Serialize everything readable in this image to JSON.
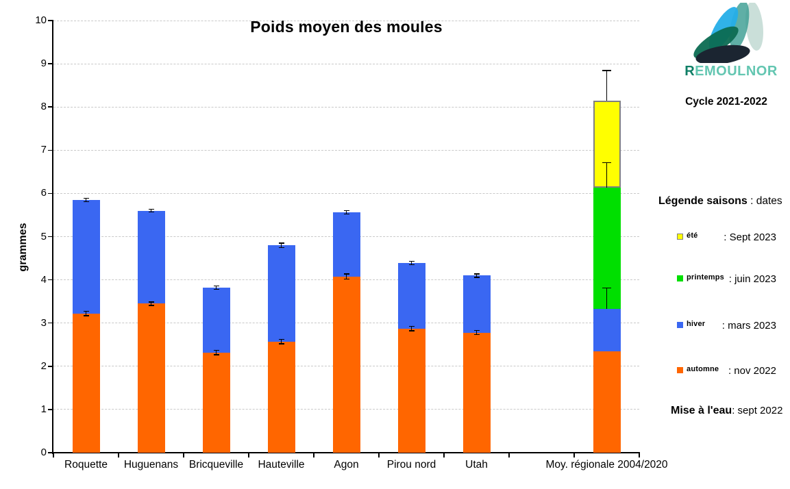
{
  "chart_data": {
    "type": "bar",
    "stacked": true,
    "title": "Poids moyen des moules",
    "ylabel": "grammes",
    "ylim": [
      0,
      10
    ],
    "ytick_step": 1,
    "grid": "horizontal dashed gridlines at every integer",
    "legend_position": "right panel (custom)",
    "categories": [
      "Roquette",
      "Huguenans",
      "Bricqueville",
      "Hauteville",
      "Agon",
      "Pirou nord",
      "Utah",
      "",
      "Moy. régionale 2004/2020"
    ],
    "series": [
      {
        "name": "automne",
        "color": "#FF6600",
        "values": [
          3.22,
          3.45,
          2.32,
          2.57,
          4.08,
          2.87,
          2.78,
          null,
          2.35
        ]
      },
      {
        "name": "hiver",
        "color": "#3A67F2",
        "values": [
          2.63,
          2.15,
          1.5,
          2.23,
          1.48,
          1.52,
          1.32,
          null,
          0.98
        ]
      },
      {
        "name": "printemps",
        "color": "#00DF00",
        "values": [
          0,
          0,
          0,
          0,
          0,
          0,
          0,
          null,
          2.81
        ]
      },
      {
        "name": "été",
        "color": "#FFFF00",
        "border": "#808080",
        "values": [
          0,
          0,
          0,
          0,
          0,
          0,
          0,
          null,
          2.01
        ]
      }
    ],
    "stack_totals": [
      5.85,
      5.6,
      3.82,
      4.8,
      5.56,
      4.39,
      4.1,
      null,
      8.15
    ],
    "error_bars": [
      {
        "ci": 0,
        "whiskers": [
          {
            "at": 3.22,
            "plus": 0.05,
            "minus": 0.05
          },
          {
            "at": 5.85,
            "plus": 0.04,
            "minus": 0.04
          }
        ]
      },
      {
        "ci": 1,
        "whiskers": [
          {
            "at": 3.45,
            "plus": 0.04,
            "minus": 0.04
          },
          {
            "at": 5.6,
            "plus": 0.03,
            "minus": 0.03
          }
        ]
      },
      {
        "ci": 2,
        "whiskers": [
          {
            "at": 2.32,
            "plus": 0.05,
            "minus": 0.05
          },
          {
            "at": 3.82,
            "plus": 0.04,
            "minus": 0.04
          }
        ]
      },
      {
        "ci": 3,
        "whiskers": [
          {
            "at": 2.57,
            "plus": 0.05,
            "minus": 0.05
          },
          {
            "at": 4.8,
            "plus": 0.05,
            "minus": 0.05
          }
        ]
      },
      {
        "ci": 4,
        "whiskers": [
          {
            "at": 4.08,
            "plus": 0.06,
            "minus": 0.06
          },
          {
            "at": 5.56,
            "plus": 0.04,
            "minus": 0.04
          }
        ]
      },
      {
        "ci": 5,
        "whiskers": [
          {
            "at": 2.87,
            "plus": 0.05,
            "minus": 0.05
          },
          {
            "at": 4.39,
            "plus": 0.04,
            "minus": 0.04
          }
        ]
      },
      {
        "ci": 6,
        "whiskers": [
          {
            "at": 2.78,
            "plus": 0.05,
            "minus": 0.05
          },
          {
            "at": 4.1,
            "plus": 0.04,
            "minus": 0.04
          }
        ]
      },
      {
        "ci": 8,
        "whiskers": [
          {
            "at": 3.33,
            "plus": 0.48,
            "minus": 0
          },
          {
            "at": 6.14,
            "plus": 0.57,
            "minus": 0
          },
          {
            "at": 8.15,
            "plus": 0.69,
            "minus": 0
          }
        ]
      }
    ]
  },
  "branding": {
    "logo_r": "R",
    "logo_rest": "EMOULNOR",
    "cycle_label": "Cycle 2021-2022"
  },
  "legend": {
    "heading": "Légende saisons",
    "heading_suffix": " :  dates",
    "items": [
      {
        "label": "été",
        "date": ": Sept 2023",
        "color": "#FFFF00",
        "border": "#808080"
      },
      {
        "label": "printemps",
        "date": ":  juin 2023",
        "color": "#00DF00"
      },
      {
        "label": "hiver",
        "date": ": mars 2023",
        "color": "#3A67F2"
      },
      {
        "label": "automne",
        "date": ": nov 2022",
        "color": "#FF6600"
      }
    ],
    "mise_label": "Mise à l'eau",
    "mise_value": ": sept 2022"
  }
}
